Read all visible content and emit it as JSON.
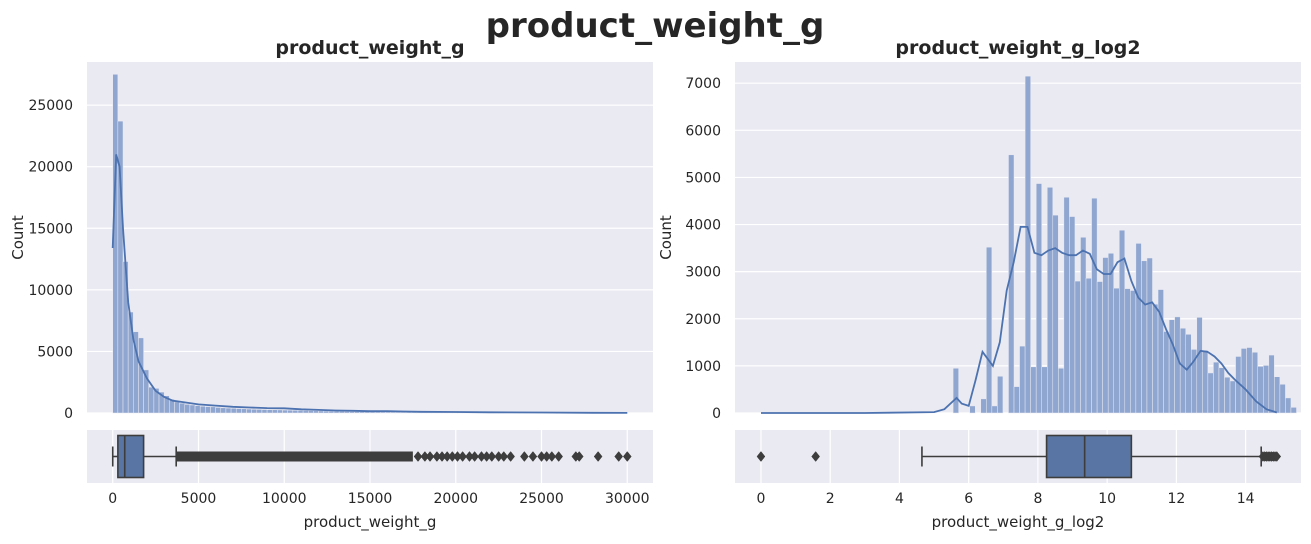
{
  "figure": {
    "suptitle": "product_weight_g"
  },
  "chart_data": [
    {
      "type": "histogram+kde+boxplot",
      "title": "product_weight_g",
      "xlabel": "product_weight_g",
      "ylabel": "Count",
      "xlim": [
        -1500,
        31500
      ],
      "ylim": [
        0,
        28500
      ],
      "xticks": [
        0,
        5000,
        10000,
        15000,
        20000,
        25000,
        30000
      ],
      "yticks": [
        0,
        5000,
        10000,
        15000,
        20000,
        25000
      ],
      "grid": true,
      "bar_color": "#8fa6d0",
      "line_color": "#4c72b0",
      "histogram": {
        "bin_start": 0,
        "bin_width": 300,
        "counts": [
          27500,
          23700,
          12300,
          8200,
          6600,
          6100,
          3500,
          2100,
          2000,
          1700,
          1400,
          1100,
          900,
          800,
          700,
          650,
          600,
          550,
          520,
          500,
          450,
          420,
          400,
          380,
          360,
          340,
          320,
          300,
          290,
          280,
          270,
          260,
          250,
          240,
          230,
          220,
          210,
          200,
          190,
          180,
          170,
          160,
          150,
          140,
          130,
          120,
          115,
          110,
          105,
          100,
          95,
          90,
          85,
          80,
          75,
          70,
          65,
          60,
          55,
          50,
          48,
          46,
          44,
          42,
          40,
          38,
          36,
          34,
          32,
          30,
          28,
          26,
          24,
          22,
          20,
          18,
          16,
          14,
          12,
          10,
          10,
          9,
          9,
          8,
          8,
          7,
          7,
          6,
          6,
          5,
          5,
          5,
          4,
          4,
          4,
          3,
          3,
          3,
          2,
          2
        ]
      },
      "kde": {
        "x": [
          0,
          200,
          400,
          600,
          900,
          1200,
          1500,
          2000,
          2500,
          3000,
          3500,
          4000,
          5000,
          6000,
          7000,
          8000,
          9000,
          10000,
          11000,
          12000,
          13000,
          14000,
          15000,
          16000,
          17000,
          18000,
          20000,
          22000,
          25000,
          28000,
          30000
        ],
        "y": [
          13400,
          21000,
          20000,
          15000,
          9000,
          6000,
          4200,
          2800,
          1800,
          1300,
          1000,
          900,
          700,
          600,
          500,
          450,
          400,
          380,
          300,
          250,
          200,
          180,
          150,
          150,
          120,
          100,
          80,
          60,
          40,
          20,
          10
        ]
      },
      "boxplot": {
        "whisker_low": 0,
        "q1": 300,
        "median": 700,
        "q3": 1800,
        "whisker_high": 3700,
        "outliers_dense_range": [
          3700,
          17500
        ],
        "outliers": [
          17800,
          18200,
          18500,
          18900,
          19200,
          19500,
          19800,
          20100,
          20400,
          20800,
          21100,
          21500,
          21800,
          22100,
          22500,
          22800,
          23200,
          24000,
          24500,
          25000,
          25300,
          25600,
          26000,
          27000,
          27200,
          28300,
          29500,
          30000
        ]
      }
    },
    {
      "type": "histogram+kde+boxplot",
      "title": "product_weight_g_log2",
      "xlabel": "product_weight_g_log2",
      "ylabel": "Count",
      "xlim": [
        -0.75,
        15.6
      ],
      "ylim": [
        0,
        7450
      ],
      "xticks": [
        0,
        2,
        4,
        6,
        8,
        10,
        12,
        14
      ],
      "yticks": [
        0,
        1000,
        2000,
        3000,
        4000,
        5000,
        6000,
        7000
      ],
      "grid": true,
      "bar_color": "#8fa6d0",
      "line_color": "#4c72b0",
      "histogram": {
        "bin_start": 5.55,
        "bin_width": 0.16,
        "counts": [
          950,
          0,
          0,
          150,
          0,
          300,
          3520,
          150,
          780,
          0,
          5480,
          560,
          1420,
          7150,
          980,
          4870,
          980,
          4790,
          4200,
          950,
          4580,
          4170,
          2800,
          3730,
          2860,
          4560,
          2790,
          3300,
          3390,
          2650,
          3880,
          2640,
          2600,
          3600,
          3230,
          3290,
          2310,
          2620,
          1730,
          1980,
          2040,
          1800,
          1670,
          1350,
          2030,
          1330,
          850,
          1080,
          960,
          760,
          680,
          1200,
          1370,
          1390,
          1290,
          990,
          1010,
          1230,
          770,
          610,
          320,
          120
        ]
      },
      "kde": {
        "x": [
          0,
          3,
          5,
          5.3,
          5.65,
          5.8,
          6.0,
          6.2,
          6.4,
          6.7,
          6.9,
          7.1,
          7.3,
          7.5,
          7.7,
          7.9,
          8.1,
          8.3,
          8.5,
          8.7,
          8.9,
          9.1,
          9.3,
          9.5,
          9.7,
          9.9,
          10.1,
          10.3,
          10.5,
          10.7,
          10.9,
          11.1,
          11.3,
          11.5,
          11.7,
          11.9,
          12.1,
          12.3,
          12.5,
          12.7,
          12.9,
          13.1,
          13.3,
          13.5,
          13.7,
          14.0,
          14.3,
          14.6,
          14.9
        ],
        "y": [
          0,
          0,
          20,
          80,
          320,
          200,
          150,
          700,
          1300,
          1000,
          1500,
          2600,
          3200,
          3950,
          3950,
          3400,
          3350,
          3450,
          3500,
          3400,
          3350,
          3350,
          3450,
          3380,
          3050,
          2950,
          2950,
          3200,
          3280,
          2800,
          2450,
          2300,
          2350,
          2150,
          1780,
          1450,
          1050,
          920,
          1100,
          1320,
          1300,
          1200,
          1050,
          850,
          700,
          500,
          250,
          80,
          10
        ]
      },
      "boxplot": {
        "whisker_low": 4.65,
        "q1": 8.25,
        "median": 9.35,
        "q3": 10.7,
        "whisker_high": 14.45,
        "outliers": [
          0,
          1.58,
          14.5,
          14.55,
          14.6,
          14.65,
          14.7,
          14.75,
          14.8,
          14.85,
          14.9
        ]
      }
    }
  ]
}
